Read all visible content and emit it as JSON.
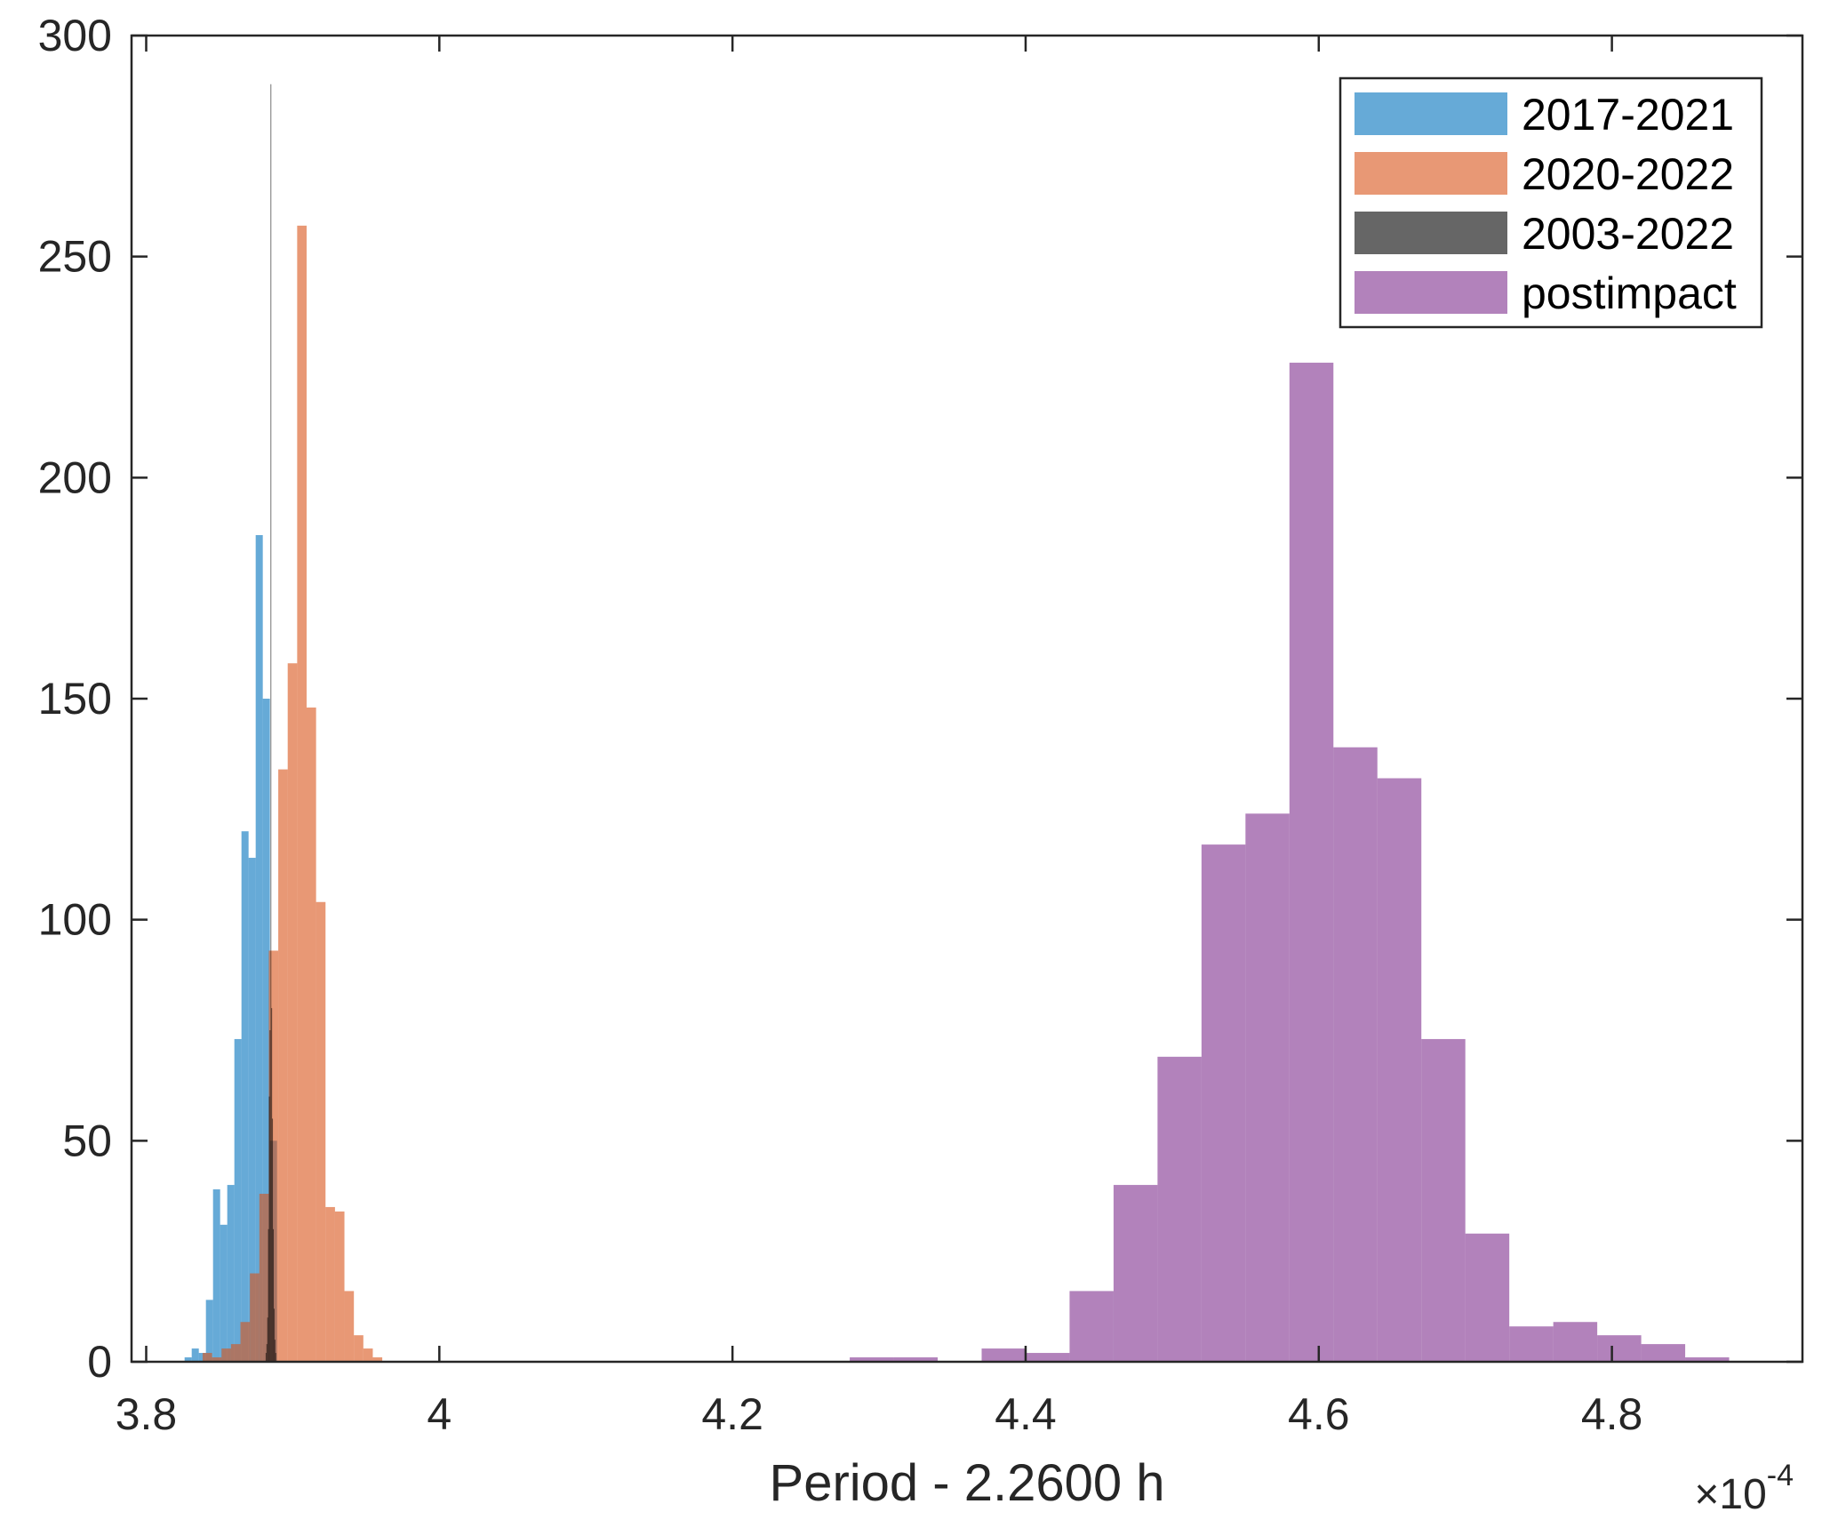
{
  "chart_data": {
    "type": "bar",
    "subtype": "histogram",
    "xlabel": "Period - 2.2600 h",
    "x_exponent_prefix": "×10",
    "x_exponent_power": "-4",
    "xlim": [
      3.79,
      4.93
    ],
    "ylim": [
      0,
      300
    ],
    "xticks": [
      3.8,
      4.0,
      4.2,
      4.4,
      4.6,
      4.8
    ],
    "xtick_labels": [
      "3.8",
      "4",
      "4.2",
      "4.4",
      "4.6",
      "4.8"
    ],
    "yticks": [
      0,
      50,
      100,
      150,
      200,
      250,
      300
    ],
    "ytick_labels": [
      "0",
      "50",
      "100",
      "150",
      "200",
      "250",
      "300"
    ],
    "legend_position": "top-right",
    "series": [
      {
        "name": "2017-2021",
        "color": "#0072bd",
        "opacity": 0.6,
        "bin_width": 0.00485,
        "bin_start": 3.8262,
        "counts": [
          1,
          3,
          2,
          14,
          39,
          31,
          40,
          73,
          120,
          114,
          187,
          150,
          50
        ]
      },
      {
        "name": "2020-2022",
        "color": "#d95319",
        "opacity": 0.6,
        "bin_width": 0.00645,
        "bin_start": 3.8385,
        "counts": [
          2,
          1,
          3,
          4,
          9,
          20,
          38,
          93,
          134,
          158,
          257,
          148,
          104,
          35,
          34,
          16,
          6,
          3,
          1
        ]
      },
      {
        "name": "2003-2022",
        "color": "#000000",
        "opacity": 0.6,
        "bin_width": 0.00055,
        "bin_start": 3.8815,
        "counts": [
          2,
          4,
          10,
          30,
          60,
          75,
          289,
          80,
          55,
          30,
          12,
          5,
          2
        ]
      },
      {
        "name": "postimpact",
        "color": "#7e2f8e",
        "opacity": 0.6,
        "bin_width": 0.03,
        "bin_start": 4.28,
        "counts": [
          1,
          1,
          0,
          3,
          2,
          16,
          40,
          69,
          117,
          124,
          226,
          139,
          132,
          73,
          29,
          8,
          9,
          6,
          4,
          1
        ]
      }
    ]
  }
}
